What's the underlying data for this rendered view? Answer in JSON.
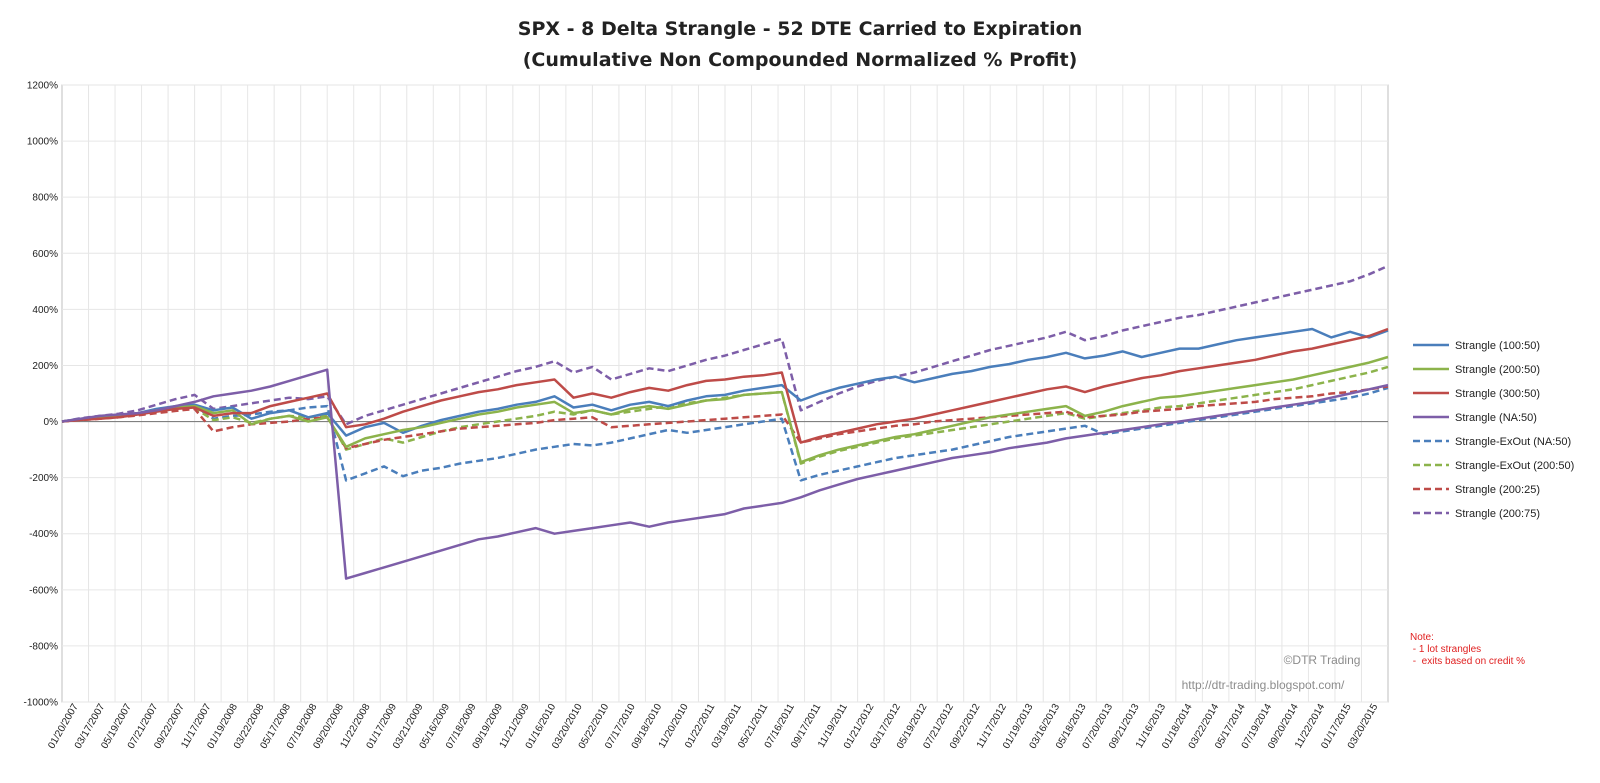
{
  "chart_data": {
    "type": "line",
    "title": "SPX - 8 Delta Strangle - 52 DTE Carried to Expiration",
    "subtitle": "(Cumulative Non Compounded Normalized % Profit)",
    "xlabel": "",
    "ylabel": "",
    "ylim": [
      -1000,
      1200
    ],
    "y_ticks": [
      "1200%",
      "1000%",
      "800%",
      "600%",
      "400%",
      "200%",
      "0%",
      "-200%",
      "-400%",
      "-600%",
      "-800%",
      "-1000%"
    ],
    "x_ticks": [
      "01/20/2007",
      "03/17/2007",
      "05/19/2007",
      "07/21/2007",
      "09/22/2007",
      "11/17/2007",
      "01/19/2008",
      "03/22/2008",
      "05/17/2008",
      "07/19/2008",
      "09/20/2008",
      "11/22/2008",
      "01/17/2009",
      "03/21/2009",
      "05/16/2009",
      "07/18/2009",
      "09/19/2009",
      "11/21/2009",
      "01/16/2010",
      "03/20/2010",
      "05/22/2010",
      "07/17/2010",
      "09/18/2010",
      "11/20/2010",
      "01/22/2011",
      "03/19/2011",
      "05/21/2011",
      "07/16/2011",
      "09/17/2011",
      "11/19/2011",
      "01/21/2012",
      "03/17/2012",
      "05/19/2012",
      "07/21/2012",
      "09/22/2012",
      "11/17/2012",
      "01/19/2013",
      "03/16/2013",
      "05/18/2013",
      "07/20/2013",
      "09/21/2013",
      "11/16/2013",
      "01/18/2014",
      "03/22/2014",
      "05/17/2014",
      "07/19/2014",
      "09/20/2014",
      "11/22/2014",
      "01/17/2015",
      "03/20/2015"
    ],
    "grid": true,
    "legend_position": "right",
    "series": [
      {
        "name": "Strangle  (100:50)",
        "color": "#4a7ebb",
        "dash": false,
        "values": [
          0,
          10,
          15,
          20,
          30,
          45,
          55,
          60,
          40,
          50,
          10,
          30,
          40,
          15,
          30,
          -50,
          -20,
          -5,
          -40,
          -15,
          5,
          20,
          35,
          45,
          60,
          70,
          90,
          50,
          60,
          40,
          60,
          70,
          55,
          75,
          90,
          95,
          110,
          120,
          130,
          75,
          100,
          120,
          135,
          150,
          160,
          140,
          155,
          170,
          180,
          195,
          205,
          220,
          230,
          245,
          225,
          235,
          250,
          230,
          245,
          260,
          260,
          275,
          290,
          300,
          310,
          320,
          330,
          300,
          320,
          300,
          325
        ]
      },
      {
        "name": "Strangle  (200:50)",
        "color": "#8cb34b",
        "dash": false,
        "values": [
          0,
          8,
          12,
          18,
          28,
          40,
          50,
          55,
          30,
          40,
          -10,
          10,
          20,
          0,
          15,
          -90,
          -60,
          -45,
          -30,
          -20,
          -5,
          10,
          25,
          35,
          50,
          60,
          70,
          30,
          40,
          25,
          45,
          55,
          45,
          60,
          75,
          80,
          95,
          100,
          105,
          -145,
          -120,
          -100,
          -85,
          -70,
          -55,
          -45,
          -30,
          -15,
          0,
          15,
          25,
          35,
          45,
          55,
          20,
          35,
          55,
          70,
          85,
          90,
          100,
          110,
          120,
          130,
          140,
          150,
          165,
          180,
          195,
          210,
          230
        ]
      },
      {
        "name": "Strangle  (300:50)",
        "color": "#be4b48",
        "dash": false,
        "values": [
          0,
          6,
          10,
          15,
          25,
          35,
          45,
          50,
          20,
          30,
          30,
          55,
          70,
          85,
          100,
          -20,
          -10,
          10,
          35,
          55,
          75,
          90,
          105,
          115,
          130,
          140,
          150,
          85,
          100,
          85,
          105,
          120,
          110,
          130,
          145,
          150,
          160,
          165,
          175,
          -75,
          -55,
          -40,
          -25,
          -10,
          0,
          10,
          25,
          40,
          55,
          70,
          85,
          100,
          115,
          125,
          105,
          125,
          140,
          155,
          165,
          180,
          190,
          200,
          210,
          220,
          235,
          250,
          260,
          275,
          290,
          305,
          330
        ]
      },
      {
        "name": "Strangle  (NA:50)",
        "color": "#7d5ea8",
        "dash": false,
        "values": [
          0,
          10,
          20,
          25,
          30,
          40,
          55,
          70,
          90,
          100,
          110,
          125,
          145,
          165,
          185,
          -560,
          -540,
          -520,
          -500,
          -480,
          -460,
          -440,
          -420,
          -410,
          -395,
          -380,
          -400,
          -390,
          -380,
          -370,
          -360,
          -375,
          -360,
          -350,
          -340,
          -330,
          -310,
          -300,
          -290,
          -270,
          -245,
          -225,
          -205,
          -190,
          -175,
          -160,
          -145,
          -130,
          -120,
          -110,
          -95,
          -85,
          -75,
          -60,
          -50,
          -40,
          -30,
          -20,
          -10,
          0,
          10,
          20,
          30,
          40,
          50,
          60,
          70,
          85,
          100,
          115,
          130
        ]
      },
      {
        "name": "Strangle-ExOut  (NA:50)",
        "color": "#4a7ebb",
        "dash": true,
        "values": [
          0,
          8,
          15,
          20,
          25,
          35,
          45,
          55,
          10,
          20,
          25,
          35,
          40,
          50,
          55,
          -210,
          -185,
          -160,
          -195,
          -175,
          -165,
          -150,
          -140,
          -130,
          -115,
          -100,
          -90,
          -80,
          -85,
          -75,
          -60,
          -45,
          -30,
          -40,
          -30,
          -20,
          -10,
          0,
          10,
          -210,
          -190,
          -175,
          -160,
          -145,
          -130,
          -120,
          -110,
          -100,
          -85,
          -70,
          -55,
          -45,
          -35,
          -25,
          -15,
          -45,
          -35,
          -25,
          -15,
          -5,
          5,
          15,
          25,
          35,
          45,
          55,
          65,
          75,
          85,
          100,
          120
        ]
      },
      {
        "name": "Strangle-ExOut  (200:50)",
        "color": "#8cb34b",
        "dash": true,
        "values": [
          0,
          8,
          12,
          18,
          25,
          35,
          42,
          48,
          5,
          15,
          -5,
          10,
          20,
          15,
          20,
          -100,
          -80,
          -60,
          -75,
          -55,
          -35,
          -20,
          -10,
          0,
          10,
          20,
          35,
          25,
          40,
          25,
          35,
          45,
          55,
          65,
          75,
          85,
          95,
          100,
          105,
          -150,
          -125,
          -105,
          -90,
          -75,
          -60,
          -50,
          -40,
          -30,
          -20,
          -10,
          0,
          10,
          20,
          30,
          10,
          20,
          30,
          40,
          50,
          55,
          65,
          75,
          85,
          95,
          105,
          115,
          130,
          145,
          160,
          175,
          195
        ]
      },
      {
        "name": "Strangle  (200:25)",
        "color": "#be4b48",
        "dash": true,
        "values": [
          0,
          5,
          10,
          15,
          22,
          30,
          38,
          45,
          -35,
          -20,
          -10,
          -5,
          0,
          10,
          15,
          -95,
          -80,
          -65,
          -55,
          -45,
          -35,
          -25,
          -20,
          -15,
          -10,
          -5,
          5,
          10,
          15,
          -20,
          -15,
          -10,
          -5,
          0,
          5,
          10,
          15,
          20,
          25,
          -75,
          -60,
          -45,
          -35,
          -25,
          -15,
          -10,
          0,
          5,
          10,
          15,
          20,
          25,
          30,
          35,
          15,
          20,
          25,
          35,
          40,
          45,
          55,
          60,
          65,
          70,
          80,
          85,
          90,
          100,
          105,
          115,
          125
        ]
      },
      {
        "name": "Strangle  (200:75)",
        "color": "#7d5ea8",
        "dash": true,
        "values": [
          0,
          12,
          20,
          28,
          40,
          60,
          80,
          95,
          45,
          55,
          65,
          75,
          85,
          80,
          90,
          -10,
          20,
          40,
          60,
          80,
          100,
          120,
          140,
          160,
          180,
          195,
          215,
          175,
          195,
          150,
          170,
          190,
          180,
          200,
          220,
          235,
          255,
          275,
          295,
          40,
          70,
          100,
          125,
          145,
          160,
          175,
          195,
          215,
          235,
          255,
          270,
          285,
          300,
          320,
          290,
          305,
          325,
          340,
          355,
          370,
          380,
          395,
          410,
          425,
          440,
          455,
          470,
          485,
          500,
          525,
          555
        ]
      }
    ],
    "note_lines": [
      "Note:",
      " - 1 lot strangles",
      " -  exits based on credit %"
    ],
    "watermark": [
      "©DTR Trading",
      "http://dtr-trading.blogspot.com/"
    ]
  }
}
